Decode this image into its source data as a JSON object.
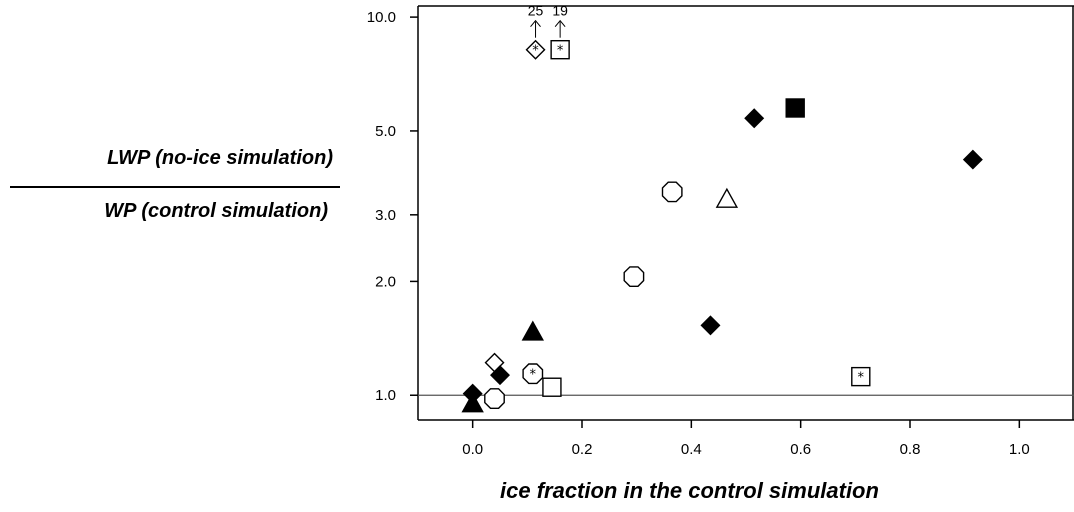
{
  "chart_data": {
    "type": "scatter",
    "title": "",
    "ylabel_numerator": "LWP (no-ice simulation)",
    "ylabel_denominator": "WP (control simulation)",
    "xlabel": "ice fraction in the control simulation",
    "x_ticks": [
      "0.0",
      "0.2",
      "0.4",
      "0.6",
      "0.8",
      "1.0"
    ],
    "x_tick_values": [
      0.0,
      0.2,
      0.4,
      0.6,
      0.8,
      1.0
    ],
    "y_ticks": [
      "1.0",
      "2.0",
      "3.0",
      "5.0",
      "10.0"
    ],
    "y_tick_values": [
      1.0,
      2.0,
      3.0,
      5.0,
      10.0
    ],
    "y_scale": "log",
    "xlim": [
      -0.1,
      1.1
    ],
    "ylim": [
      0.86,
      10.7
    ],
    "reference_line_y": 1.0,
    "points": [
      {
        "x": 0.0,
        "y": 0.95,
        "marker": "filled-triangle"
      },
      {
        "x": 0.0,
        "y": 1.01,
        "marker": "filled-diamond"
      },
      {
        "x": 0.04,
        "y": 0.98,
        "marker": "open-octagon"
      },
      {
        "x": 0.04,
        "y": 1.22,
        "marker": "open-diamond"
      },
      {
        "x": 0.05,
        "y": 1.13,
        "marker": "filled-diamond"
      },
      {
        "x": 0.11,
        "y": 1.47,
        "marker": "filled-triangle"
      },
      {
        "x": 0.11,
        "y": 1.14,
        "marker": "open-octagon-star"
      },
      {
        "x": 0.145,
        "y": 1.05,
        "marker": "open-square"
      },
      {
        "x": 0.115,
        "y": 8.2,
        "marker": "open-diamond-star",
        "annotation": "25"
      },
      {
        "x": 0.16,
        "y": 8.2,
        "marker": "open-square-star",
        "annotation": "19"
      },
      {
        "x": 0.295,
        "y": 2.06,
        "marker": "open-octagon"
      },
      {
        "x": 0.365,
        "y": 3.45,
        "marker": "open-octagon"
      },
      {
        "x": 0.435,
        "y": 1.53,
        "marker": "filled-diamond"
      },
      {
        "x": 0.465,
        "y": 3.3,
        "marker": "open-triangle"
      },
      {
        "x": 0.515,
        "y": 5.4,
        "marker": "filled-diamond"
      },
      {
        "x": 0.59,
        "y": 5.75,
        "marker": "filled-square"
      },
      {
        "x": 0.71,
        "y": 1.12,
        "marker": "open-square-star"
      },
      {
        "x": 0.915,
        "y": 4.2,
        "marker": "filled-diamond"
      }
    ]
  }
}
